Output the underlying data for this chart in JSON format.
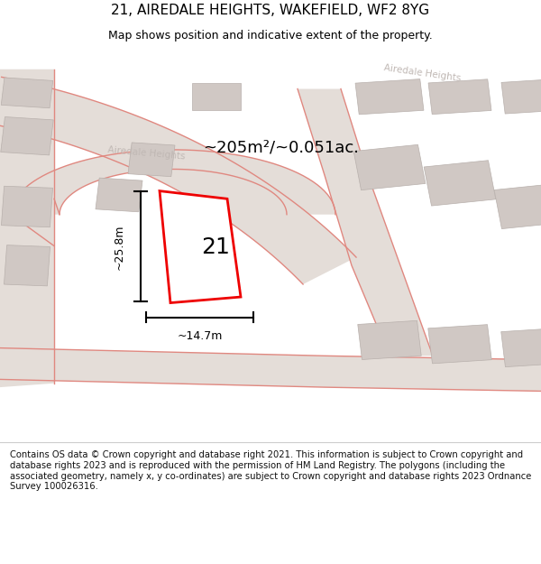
{
  "title": "21, AIREDALE HEIGHTS, WAKEFIELD, WF2 8YG",
  "subtitle": "Map shows position and indicative extent of the property.",
  "footer": "Contains OS data © Crown copyright and database right 2021. This information is subject to Crown copyright and database rights 2023 and is reproduced with the permission of HM Land Registry. The polygons (including the associated geometry, namely x, y co-ordinates) are subject to Crown copyright and database rights 2023 Ordnance Survey 100026316.",
  "area_label": "~205m²/~0.051ac.",
  "width_label": "~14.7m",
  "height_label": "~25.8m",
  "plot_number": "21",
  "map_bg": "#f2ede9",
  "road_fill": "#e4ddd8",
  "building_fill": "#d0c8c4",
  "road_edge": "#e08880",
  "highlight_color": "#ee0000",
  "title_fontsize": 11,
  "subtitle_fontsize": 9,
  "footer_fontsize": 7.2,
  "road_name_color": "#c0b8b4",
  "road_lw": 1.0
}
